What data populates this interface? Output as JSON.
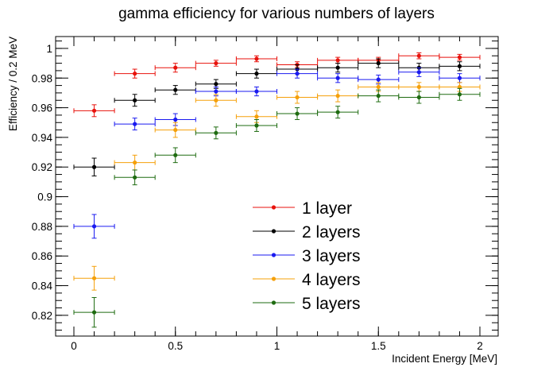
{
  "chart_data": {
    "type": "scatter",
    "title": "gamma efficiency for various numbers of layers",
    "xlabel": "Incident Energy [MeV]",
    "ylabel": "Efficiency / 0.2 MeV",
    "xlim": [
      -0.09,
      2.09
    ],
    "ylim": [
      0.806,
      1.008
    ],
    "x_ticks": [
      "0",
      "0.5",
      "1",
      "1.5",
      "2"
    ],
    "y_ticks": [
      "0.82",
      "0.84",
      "0.86",
      "0.88",
      "0.9",
      "0.92",
      "0.94",
      "0.96",
      "0.98",
      "1"
    ],
    "x_error": 0.1,
    "grid": false,
    "legend_position": "bottom-center",
    "series": [
      {
        "name": "1 layer",
        "color": "#e8120c",
        "x": [
          0.1,
          0.3,
          0.5,
          0.7,
          0.9,
          1.1,
          1.3,
          1.5,
          1.7,
          1.9
        ],
        "y": [
          0.958,
          0.983,
          0.987,
          0.99,
          0.993,
          0.989,
          0.992,
          0.992,
          0.995,
          0.994
        ],
        "yerr": [
          0.004,
          0.003,
          0.003,
          0.002,
          0.002,
          0.002,
          0.002,
          0.002,
          0.002,
          0.002
        ]
      },
      {
        "name": "2 layers",
        "color": "#000000",
        "x": [
          0.1,
          0.3,
          0.5,
          0.7,
          0.9,
          1.1,
          1.3,
          1.5,
          1.7,
          1.9
        ],
        "y": [
          0.92,
          0.965,
          0.972,
          0.976,
          0.983,
          0.986,
          0.987,
          0.99,
          0.987,
          0.988
        ],
        "yerr": [
          0.006,
          0.004,
          0.003,
          0.003,
          0.003,
          0.003,
          0.003,
          0.003,
          0.003,
          0.003
        ]
      },
      {
        "name": "3 layers",
        "color": "#1a1af0",
        "x": [
          0.1,
          0.3,
          0.5,
          0.7,
          0.9,
          1.1,
          1.3,
          1.5,
          1.7,
          1.9
        ],
        "y": [
          0.88,
          0.949,
          0.952,
          0.971,
          0.971,
          0.983,
          0.98,
          0.979,
          0.984,
          0.98
        ],
        "yerr": [
          0.008,
          0.004,
          0.004,
          0.003,
          0.003,
          0.003,
          0.003,
          0.003,
          0.003,
          0.003
        ]
      },
      {
        "name": "4 layers",
        "color": "#f5a00a",
        "x": [
          0.1,
          0.3,
          0.5,
          0.7,
          0.9,
          1.1,
          1.3,
          1.5,
          1.7,
          1.9
        ],
        "y": [
          0.845,
          0.923,
          0.945,
          0.965,
          0.954,
          0.967,
          0.968,
          0.974,
          0.974,
          0.974
        ],
        "yerr": [
          0.008,
          0.005,
          0.005,
          0.004,
          0.004,
          0.004,
          0.004,
          0.003,
          0.003,
          0.003
        ]
      },
      {
        "name": "5 layers",
        "color": "#1e6b10",
        "x": [
          0.1,
          0.3,
          0.5,
          0.7,
          0.9,
          1.1,
          1.3,
          1.5,
          1.7,
          1.9
        ],
        "y": [
          0.822,
          0.913,
          0.928,
          0.943,
          0.948,
          0.956,
          0.957,
          0.968,
          0.967,
          0.969
        ],
        "yerr": [
          0.01,
          0.005,
          0.005,
          0.004,
          0.004,
          0.004,
          0.004,
          0.004,
          0.004,
          0.004
        ]
      }
    ]
  }
}
